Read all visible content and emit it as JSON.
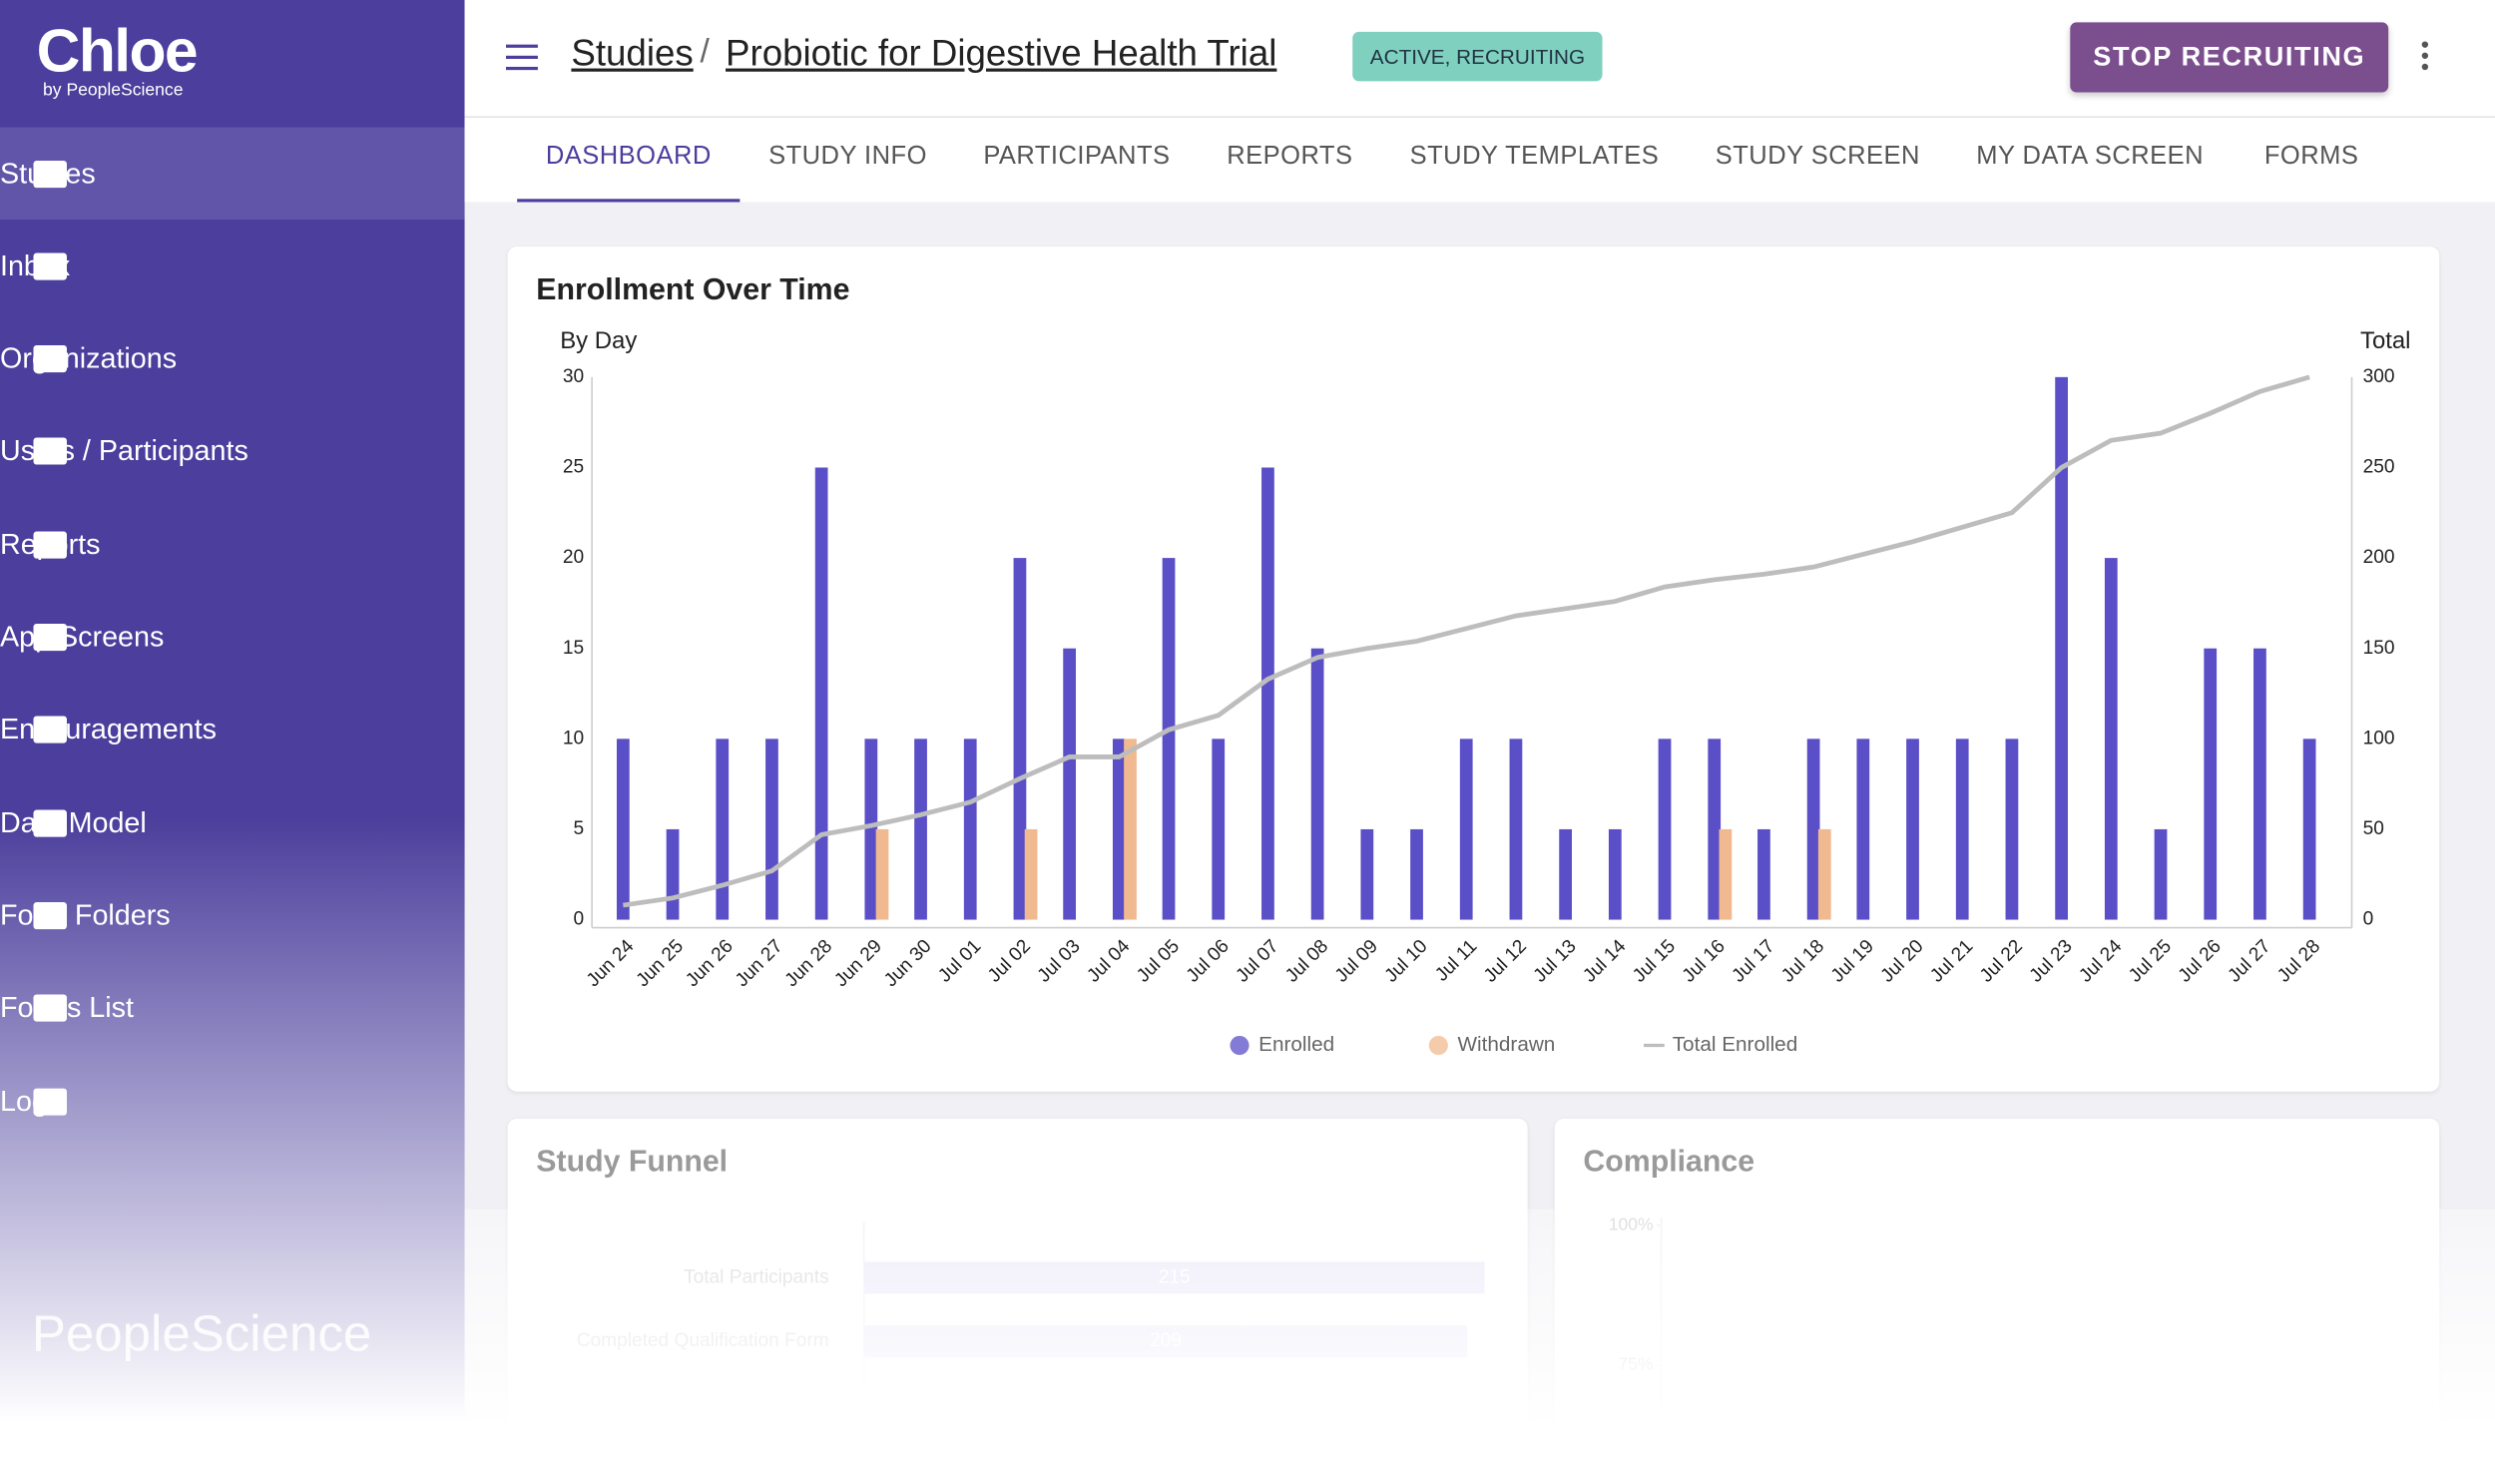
{
  "sidebar": {
    "logo": "Chloe",
    "logo_sub": "by PeopleScience",
    "items": [
      "Studies",
      "Inbox",
      "Organizations",
      "Users / Participants",
      "Reports",
      "App Screens",
      "Encouragements",
      "Data Model",
      "Form Folders",
      "Forms List",
      "Logs"
    ],
    "footer": "PeopleScience"
  },
  "header": {
    "breadcrumb": [
      "Studies",
      "Probiotic for Digestive Health Trial"
    ],
    "separator": "/",
    "status": "ACTIVE, RECRUITING",
    "button": "STOP RECRUITING"
  },
  "tabs": [
    "DASHBOARD",
    "STUDY INFO",
    "PARTICIPANTS",
    "REPORTS",
    "STUDY TEMPLATES",
    "STUDY SCREEN",
    "MY DATA SCREEN",
    "FORMS"
  ],
  "chart_data": [
    {
      "type": "bar",
      "title": "Enrollment Over Time",
      "y_label": "By Day",
      "y2_label": "Total",
      "categories": [
        "Jun 24",
        "Jun 25",
        "Jun 26",
        "Jun 27",
        "Jun 28",
        "Jun 29",
        "Jun 30",
        "Jul 01",
        "Jul 02",
        "Jul 03",
        "Jul 04",
        "Jul 05",
        "Jul 06",
        "Jul 07",
        "Jul 08",
        "Jul 09",
        "Jul 10",
        "Jul 11",
        "Jul 12",
        "Jul 13",
        "Jul 14",
        "Jul 15",
        "Jul 16",
        "Jul 17",
        "Jul 18",
        "Jul 19",
        "Jul 20",
        "Jul 21",
        "Jul 22",
        "Jul 23",
        "Jul 24",
        "Jul 25",
        "Jul 26",
        "Jul 27",
        "Jul 28"
      ],
      "series": [
        {
          "name": "Enrolled",
          "color": "#5a4fc7",
          "values": [
            10,
            5,
            10,
            10,
            25,
            10,
            10,
            10,
            20,
            15,
            10,
            20,
            10,
            25,
            15,
            5,
            5,
            10,
            10,
            5,
            5,
            10,
            10,
            5,
            10,
            10,
            10,
            10,
            10,
            30,
            20,
            5,
            15,
            15,
            10
          ]
        },
        {
          "name": "Withdrawn",
          "color": "#f0b98f",
          "values": [
            0,
            0,
            0,
            0,
            0,
            5,
            0,
            0,
            5,
            0,
            10,
            0,
            0,
            0,
            0,
            0,
            0,
            0,
            0,
            0,
            0,
            0,
            5,
            0,
            5,
            0,
            0,
            0,
            0,
            0,
            0,
            0,
            0,
            0,
            0
          ]
        },
        {
          "name": "Total Enrolled",
          "color": "#bdbdbd",
          "axis": "y2",
          "type": "line",
          "values": [
            8,
            12,
            19,
            27,
            47,
            52,
            58,
            65,
            78,
            90,
            90,
            105,
            113,
            133,
            145,
            150,
            154,
            161,
            168,
            172,
            176,
            184,
            188,
            191,
            195,
            202,
            209,
            217,
            225,
            250,
            265,
            269,
            280,
            292,
            300
          ]
        }
      ],
      "ylim": [
        0,
        30
      ],
      "yticks": [
        0,
        5,
        10,
        15,
        20,
        25,
        30
      ],
      "y2lim": [
        0,
        300
      ],
      "y2ticks": [
        0,
        50,
        100,
        150,
        200,
        250,
        300
      ]
    },
    {
      "type": "hbar",
      "title": "Study Funnel",
      "categories": [
        "Total Participants",
        "Completed Qualification Form"
      ],
      "values": [
        215,
        209
      ],
      "xlim": [
        0,
        215
      ],
      "color": "#e7e4f7"
    },
    {
      "type": "line",
      "title": "Compliance",
      "ylim": [
        0,
        100
      ],
      "yticks": [
        {
          "value": 100,
          "label": "100%"
        },
        {
          "value": 75,
          "label": "75%"
        }
      ]
    }
  ]
}
